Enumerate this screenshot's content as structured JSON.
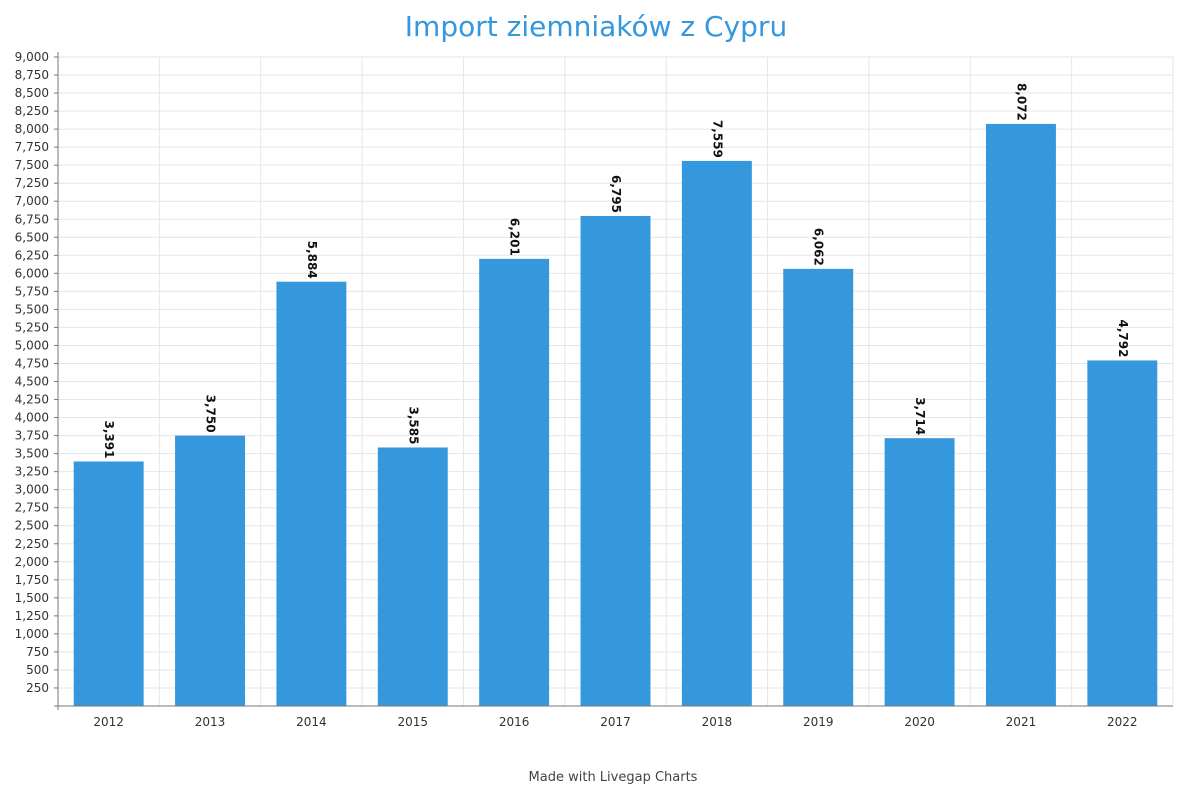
{
  "chart_data": {
    "type": "bar",
    "title": "Import ziemniaków z Cypru",
    "xlabel": "",
    "ylabel": "",
    "categories": [
      "2012",
      "2013",
      "2014",
      "2015",
      "2016",
      "2017",
      "2018",
      "2019",
      "2020",
      "2021",
      "2022"
    ],
    "values": [
      3391,
      3750,
      5884,
      3585,
      6201,
      6795,
      7559,
      6062,
      3714,
      8072,
      4792
    ],
    "value_labels": [
      "3,391",
      "3,750",
      "5,884",
      "3,585",
      "6,201",
      "6,795",
      "7,559",
      "6,062",
      "3,714",
      "8,072",
      "4,792"
    ],
    "y_ticks": [
      250,
      500,
      750,
      1000,
      1250,
      1500,
      1750,
      2000,
      2250,
      2500,
      2750,
      3000,
      3250,
      3500,
      3750,
      4000,
      4250,
      4500,
      4750,
      5000,
      5250,
      5500,
      5750,
      6000,
      6250,
      6500,
      6750,
      7000,
      7250,
      7500,
      7750,
      8000,
      8250,
      8500,
      8750,
      9000
    ],
    "y_tick_labels": [
      "250",
      "500",
      "750",
      "1,000",
      "1,250",
      "1,500",
      "1,750",
      "2,000",
      "2,250",
      "2,500",
      "2,750",
      "3,000",
      "3,250",
      "3,500",
      "3,750",
      "4,000",
      "4,250",
      "4,500",
      "4,750",
      "5,000",
      "5,250",
      "5,500",
      "5,750",
      "6,000",
      "6,250",
      "6,500",
      "6,750",
      "7,000",
      "7,250",
      "7,500",
      "7,750",
      "8,000",
      "8,250",
      "8,500",
      "8,750",
      "9,000"
    ],
    "ylim": [
      0,
      9000
    ],
    "grid": true,
    "legend": "none"
  },
  "colors": {
    "bar": "#3598dc",
    "title": "#3598dc",
    "grid": "#e6e6e6",
    "axis": "#777777"
  },
  "footer": {
    "credit": "Made with Livegap Charts"
  }
}
